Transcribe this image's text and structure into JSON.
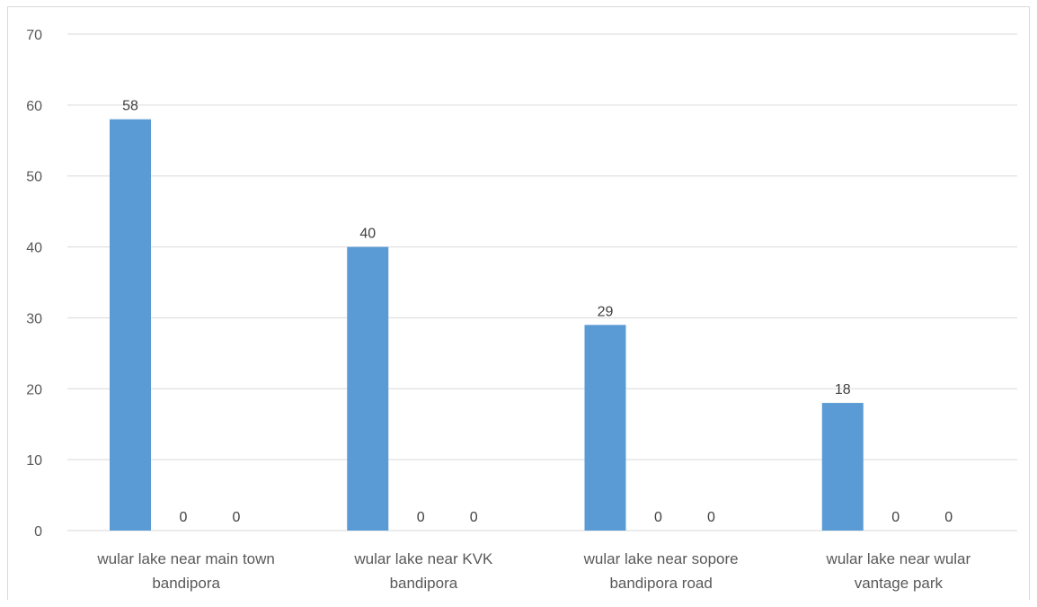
{
  "chart_data": {
    "type": "bar",
    "categories": [
      [
        "wular lake near main town",
        "bandipora"
      ],
      [
        "wular lake near KVK",
        "bandipora"
      ],
      [
        "wular lake near sopore",
        "bandipora road"
      ],
      [
        "wular lake near wular",
        "vantage park"
      ]
    ],
    "series": [
      {
        "values": [
          58,
          40,
          29,
          18
        ]
      },
      {
        "values": [
          0,
          0,
          0,
          0
        ]
      },
      {
        "values": [
          0,
          0,
          0,
          0
        ]
      }
    ],
    "title": "",
    "xlabel": "",
    "ylabel": "",
    "ylim": [
      0,
      70
    ],
    "yticks": [
      0,
      10,
      20,
      30,
      40,
      50,
      60,
      70
    ],
    "grid": true,
    "legend": "none",
    "data_labels": true,
    "colors": [
      "#5b9bd5",
      "#ed7d31",
      "#a5a5a5"
    ]
  }
}
